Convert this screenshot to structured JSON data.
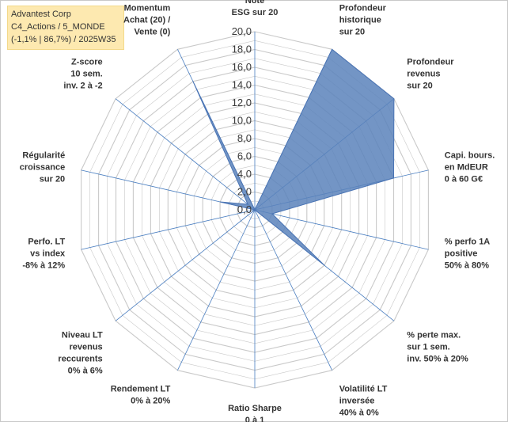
{
  "header": {
    "line1": "Advantest Corp",
    "line2": "C4_Actions / 5_MONDE",
    "line3": "(-1,1% | 86,7%) / 2025W35"
  },
  "chart_data": {
    "type": "radar",
    "rmax": 20,
    "tick_labels": [
      "0,0",
      "2,0",
      "4,0",
      "6,0",
      "8,0",
      "10,0",
      "12,0",
      "14,0",
      "16,0",
      "18,0",
      "20,0"
    ],
    "axes": [
      [
        "Note",
        "ESG sur 20"
      ],
      [
        "Profondeur",
        "historique",
        "sur 20"
      ],
      [
        "Profondeur",
        "revenus",
        "sur 20"
      ],
      [
        "Capi. bours.",
        "en MdEUR",
        "0 à 60 G€"
      ],
      [
        "% perfo 1A",
        "positive",
        "50% à 80%"
      ],
      [
        "% perte max.",
        "sur 1 sem.",
        "inv. 50% à 20%"
      ],
      [
        "Volatilité LT",
        "inversée",
        "40% à 0%"
      ],
      [
        "Ratio Sharpe",
        "0 à 1"
      ],
      [
        "Rendement LT",
        "0% à 20%"
      ],
      [
        "Niveau LT",
        "revenus",
        "reccurents",
        "0% à 6%"
      ],
      [
        "Perfo. LT",
        "vs index",
        "-8% à 12%"
      ],
      [
        "Régularité",
        "croissance",
        "sur 20"
      ],
      [
        "Z-score",
        "10 sem.",
        "inv. 2 à -2"
      ],
      [
        "Momentum",
        "Achat (20) /",
        "Vente (0)"
      ]
    ],
    "series": [
      {
        "values": [
          0,
          20,
          20,
          16,
          2,
          10,
          0,
          0,
          0,
          0.5,
          0,
          4,
          1,
          16
        ],
        "color": "#4a74b4",
        "fill": "#5b82bb"
      }
    ],
    "grid": true,
    "grid_color": "#c9c9c9",
    "spoke_color": "#4a7ec0"
  }
}
